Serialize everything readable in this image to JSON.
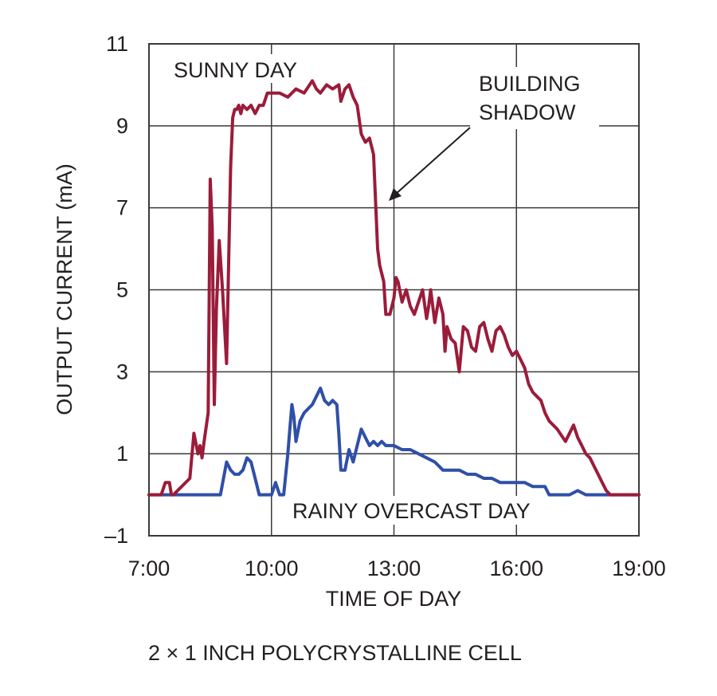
{
  "caption": "2 × 1 INCH POLYCRYSTALLINE CELL",
  "colors": {
    "sunny": "#9b1c3a",
    "rainy": "#2f4fa8",
    "grid": "#3a3a3a",
    "text": "#231f20"
  },
  "chart_data": {
    "type": "line",
    "title": "",
    "xlabel": "TIME OF DAY",
    "ylabel": "OUTPUT CURRENT (mA)",
    "xlim": [
      7,
      19
    ],
    "ylim": [
      -1,
      11
    ],
    "x_ticks": [
      7,
      10,
      13,
      16,
      19
    ],
    "x_tick_labels": [
      "7:00",
      "10:00",
      "13:00",
      "16:00",
      "19:00"
    ],
    "y_ticks": [
      -1,
      1,
      3,
      5,
      7,
      9,
      11
    ],
    "y_tick_labels": [
      "–1",
      "1",
      "3",
      "5",
      "7",
      "9",
      "11"
    ],
    "grid": true,
    "annotations": {
      "sunny_label": "SUNNY DAY",
      "rainy_label": "RAINY OVERCAST DAY",
      "shadow_line1": "BUILDING",
      "shadow_line2": "SHADOW"
    },
    "series": [
      {
        "label": "SUNNY DAY",
        "x": [
          7.0,
          7.3,
          7.4,
          7.5,
          7.55,
          7.6,
          8.0,
          8.1,
          8.2,
          8.25,
          8.3,
          8.35,
          8.45,
          8.5,
          8.55,
          8.6,
          8.65,
          8.72,
          8.8,
          8.9,
          9.0,
          9.05,
          9.1,
          9.15,
          9.2,
          9.25,
          9.3,
          9.4,
          9.5,
          9.6,
          9.7,
          9.8,
          9.9,
          10.0,
          10.2,
          10.4,
          10.6,
          10.8,
          11.0,
          11.1,
          11.2,
          11.35,
          11.5,
          11.65,
          11.7,
          11.8,
          11.9,
          12.0,
          12.1,
          12.2,
          12.3,
          12.4,
          12.5,
          12.6,
          12.65,
          12.7,
          12.75,
          12.8,
          12.9,
          13.0,
          13.05,
          13.1,
          13.2,
          13.3,
          13.4,
          13.5,
          13.6,
          13.7,
          13.8,
          13.85,
          13.9,
          14.0,
          14.1,
          14.2,
          14.25,
          14.3,
          14.4,
          14.5,
          14.6,
          14.7,
          14.8,
          14.9,
          15.0,
          15.1,
          15.2,
          15.3,
          15.4,
          15.5,
          15.6,
          15.7,
          15.8,
          15.9,
          16.0,
          16.1,
          16.2,
          16.3,
          16.4,
          16.5,
          16.6,
          16.7,
          16.8,
          16.9,
          17.0,
          17.2,
          17.4,
          17.5,
          17.6,
          17.7,
          17.8,
          17.9,
          18.0,
          18.1,
          18.2,
          18.3,
          18.4,
          18.5,
          18.6,
          18.7,
          19.0
        ],
        "y": [
          0.0,
          0.0,
          0.3,
          0.3,
          0.0,
          0.0,
          0.4,
          1.5,
          1.0,
          1.2,
          0.9,
          1.3,
          2.0,
          7.7,
          6.5,
          2.2,
          4.5,
          6.2,
          5.0,
          3.2,
          8.0,
          9.2,
          9.4,
          9.4,
          9.5,
          9.3,
          9.5,
          9.4,
          9.5,
          9.3,
          9.5,
          9.5,
          9.8,
          9.8,
          9.8,
          9.7,
          9.9,
          9.8,
          10.1,
          9.9,
          9.8,
          10.0,
          9.9,
          10.0,
          9.6,
          9.9,
          10.0,
          9.7,
          9.5,
          8.8,
          8.6,
          8.7,
          8.3,
          6.0,
          5.6,
          5.4,
          5.2,
          4.4,
          4.4,
          4.8,
          5.3,
          5.2,
          4.7,
          5.0,
          4.6,
          4.4,
          4.7,
          5.0,
          4.3,
          4.6,
          5.0,
          4.2,
          4.8,
          4.4,
          3.5,
          4.1,
          3.8,
          3.7,
          3.0,
          4.1,
          4.0,
          3.6,
          3.5,
          4.1,
          4.2,
          3.8,
          3.5,
          4.0,
          4.1,
          3.9,
          3.6,
          3.4,
          3.5,
          3.3,
          3.1,
          2.7,
          2.5,
          2.4,
          2.3,
          2.0,
          1.8,
          1.7,
          1.6,
          1.3,
          1.7,
          1.4,
          1.2,
          1.0,
          0.9,
          0.7,
          0.5,
          0.3,
          0.1,
          0.0,
          0.0,
          0.0,
          0.0,
          0.0,
          0.0
        ]
      },
      {
        "label": "RAINY OVERCAST DAY",
        "x": [
          7.0,
          8.5,
          8.75,
          8.9,
          9.0,
          9.1,
          9.2,
          9.3,
          9.4,
          9.5,
          9.6,
          9.7,
          9.9,
          10.0,
          10.1,
          10.2,
          10.3,
          10.4,
          10.45,
          10.5,
          10.55,
          10.6,
          10.7,
          10.8,
          10.9,
          11.0,
          11.1,
          11.2,
          11.3,
          11.4,
          11.5,
          11.6,
          11.65,
          11.7,
          11.8,
          11.9,
          12.0,
          12.1,
          12.2,
          12.3,
          12.4,
          12.5,
          12.6,
          12.7,
          12.8,
          12.9,
          13.0,
          13.2,
          13.4,
          13.6,
          13.8,
          14.0,
          14.2,
          14.4,
          14.6,
          14.8,
          15.0,
          15.2,
          15.4,
          15.6,
          15.8,
          16.0,
          16.2,
          16.4,
          16.6,
          16.7,
          16.8,
          17.0,
          17.3,
          17.5,
          17.7,
          18.0,
          19.0
        ],
        "y": [
          0.0,
          0.0,
          0.0,
          0.8,
          0.6,
          0.5,
          0.5,
          0.6,
          0.9,
          0.8,
          0.4,
          0.0,
          0.0,
          0.0,
          0.3,
          0.0,
          0.0,
          1.0,
          1.6,
          2.2,
          1.9,
          1.3,
          1.8,
          2.0,
          2.1,
          2.2,
          2.4,
          2.6,
          2.3,
          2.2,
          2.3,
          2.2,
          1.5,
          0.6,
          0.6,
          1.1,
          0.8,
          1.2,
          1.6,
          1.4,
          1.2,
          1.3,
          1.2,
          1.3,
          1.2,
          1.2,
          1.2,
          1.1,
          1.1,
          1.0,
          0.9,
          0.8,
          0.6,
          0.6,
          0.6,
          0.5,
          0.5,
          0.4,
          0.4,
          0.3,
          0.3,
          0.3,
          0.3,
          0.2,
          0.2,
          0.2,
          0.0,
          0.0,
          0.0,
          0.1,
          0.0,
          0.0,
          0.0
        ]
      }
    ]
  }
}
